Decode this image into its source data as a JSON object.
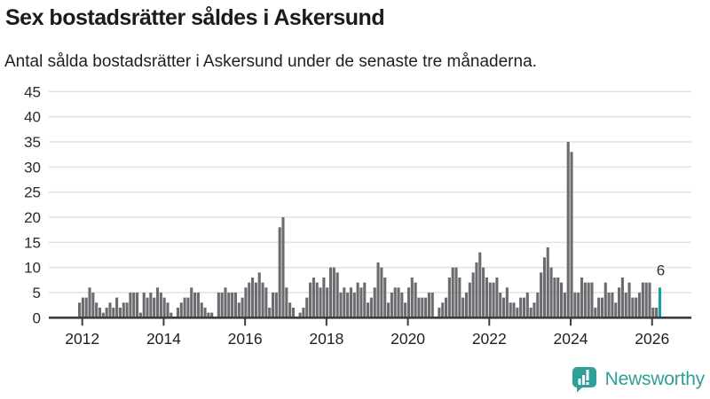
{
  "header": {
    "title": "Sex bostadsrätter såldes i Askersund",
    "subtitle": "Antal sålda bostadsrätter i Askersund under de senaste tre månaderna."
  },
  "chart_data": {
    "type": "bar",
    "title": "Sex bostadsrätter såldes i Askersund",
    "subtitle": "Antal sålda bostadsrätter i Askersund under de senaste tre månaderna.",
    "frequency": "monthly",
    "start_month": "2011-12",
    "end_month": "2026-03",
    "x_tick_years": [
      "2012",
      "2014",
      "2016",
      "2018",
      "2020",
      "2022",
      "2024",
      "2026"
    ],
    "y_ticks": [
      0,
      5,
      10,
      15,
      20,
      25,
      30,
      35,
      40,
      45
    ],
    "ylim": [
      0,
      45
    ],
    "grid": true,
    "legend": "none",
    "bar_color": "#6B6B70",
    "highlight_color": "#10A4A0",
    "highlight": {
      "index": 171,
      "value": 6,
      "label": "6"
    },
    "values": [
      3,
      4,
      4,
      6,
      5,
      3,
      2,
      1,
      2,
      3,
      2,
      4,
      2,
      3,
      3,
      5,
      5,
      5,
      1,
      5,
      4,
      5,
      4,
      6,
      5,
      4,
      3,
      1,
      0,
      2,
      3,
      4,
      4,
      6,
      5,
      5,
      3,
      2,
      1,
      1,
      0,
      5,
      5,
      6,
      5,
      5,
      5,
      3,
      4,
      6,
      7,
      8,
      7,
      9,
      7,
      6,
      2,
      5,
      5,
      18,
      20,
      6,
      3,
      2,
      0,
      1,
      2,
      4,
      7,
      8,
      7,
      6,
      8,
      6,
      10,
      10,
      9,
      5,
      6,
      5,
      6,
      5,
      7,
      6,
      7,
      3,
      4,
      6,
      11,
      10,
      8,
      3,
      5,
      6,
      6,
      5,
      3,
      6,
      8,
      7,
      4,
      4,
      4,
      5,
      5,
      0,
      2,
      3,
      4,
      8,
      10,
      10,
      8,
      4,
      5,
      7,
      9,
      11,
      13,
      10,
      8,
      7,
      7,
      8,
      5,
      4,
      6,
      3,
      3,
      2,
      4,
      4,
      5,
      2,
      3,
      5,
      9,
      12,
      14,
      10,
      8,
      8,
      7,
      5,
      35,
      33,
      5,
      5,
      8,
      7,
      7,
      7,
      2,
      4,
      4,
      7,
      5,
      5,
      3,
      6,
      8,
      5,
      7,
      4,
      4,
      5,
      7,
      7,
      7,
      2,
      2,
      6
    ]
  },
  "footer": {
    "brand": "Newsworthy",
    "brand_color": "#2F9F97",
    "logo_icon": "bar-chart-speech-bubble-icon"
  }
}
